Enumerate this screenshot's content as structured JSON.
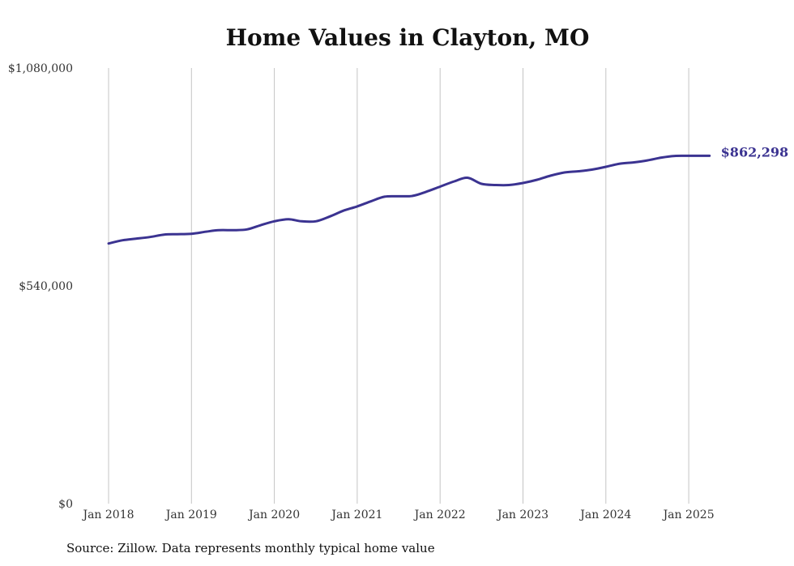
{
  "chart_data": {
    "type": "line",
    "title": "Home Values in Clayton, MO",
    "xlabel": "",
    "ylabel": "",
    "ylim": [
      0,
      1080000
    ],
    "y_ticks": [
      "$0",
      "$540,000",
      "$1,080,000"
    ],
    "y_tick_values": [
      0,
      540000,
      1080000
    ],
    "x_ticks": [
      "Jan 2018",
      "Jan 2019",
      "Jan 2020",
      "Jan 2021",
      "Jan 2022",
      "Jan 2023",
      "Jan 2024",
      "Jan 2025"
    ],
    "x_tick_years": [
      2018,
      2019,
      2020,
      2021,
      2022,
      2023,
      2024,
      2025
    ],
    "grid": "vertical",
    "line_color": "#3b3391",
    "end_label": "$862,298",
    "series": [
      {
        "x": [
          2018.0,
          2018.17,
          2018.33,
          2018.5,
          2018.67,
          2018.83,
          2019.0,
          2019.17,
          2019.33,
          2019.5,
          2019.67,
          2019.83,
          2020.0,
          2020.17,
          2020.33,
          2020.5,
          2020.67,
          2020.83,
          2021.0,
          2021.17,
          2021.33,
          2021.5,
          2021.67,
          2021.83,
          2022.0,
          2022.17,
          2022.33,
          2022.5,
          2022.67,
          2022.83,
          2023.0,
          2023.17,
          2023.33,
          2023.5,
          2023.67,
          2023.83,
          2024.0,
          2024.17,
          2024.33,
          2024.5,
          2024.67,
          2024.83,
          2025.0,
          2025.17,
          2025.25
        ],
        "values": [
          645000,
          653000,
          657000,
          661000,
          667000,
          668000,
          669000,
          674000,
          678000,
          678000,
          680000,
          690000,
          700000,
          705000,
          700000,
          700000,
          712000,
          726000,
          737000,
          750000,
          761000,
          762000,
          763000,
          773000,
          786000,
          799000,
          808000,
          793000,
          790000,
          790000,
          795000,
          803000,
          813000,
          821000,
          824000,
          828000,
          835000,
          843000,
          846000,
          851000,
          858000,
          862000,
          862298,
          862298,
          862298
        ]
      }
    ]
  },
  "source": "Source: Zillow. Data represents monthly typical home value"
}
